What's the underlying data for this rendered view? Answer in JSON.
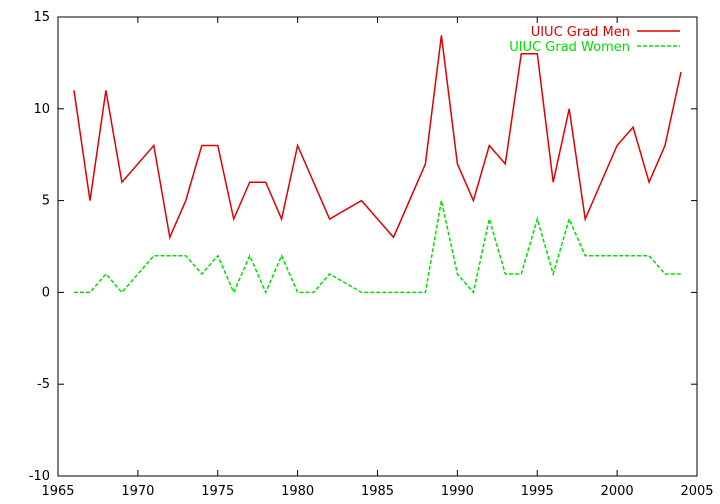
{
  "chart_data": {
    "type": "line",
    "title": "",
    "xlabel": "",
    "ylabel": "",
    "xlim": [
      1965,
      2005
    ],
    "ylim": [
      -10,
      15
    ],
    "xticks": [
      1965,
      1970,
      1975,
      1980,
      1985,
      1990,
      1995,
      2000,
      2005
    ],
    "yticks": [
      -10,
      -5,
      0,
      5,
      10,
      15
    ],
    "grid": false,
    "legend_position": "top-right",
    "series": [
      {
        "name": "UIUC Grad Men",
        "color": "#e00000",
        "style": "solid",
        "x": [
          1966,
          1967,
          1968,
          1969,
          1971,
          1972,
          1973,
          1974,
          1975,
          1976,
          1977,
          1978,
          1979,
          1980,
          1982,
          1984,
          1986,
          1988,
          1989,
          1990,
          1991,
          1992,
          1993,
          1994,
          1995,
          1996,
          1997,
          1998,
          2000,
          2001,
          2002,
          2003,
          2004
        ],
        "y": [
          11,
          5,
          11,
          6,
          8,
          3,
          5,
          8,
          8,
          4,
          6,
          6,
          4,
          8,
          4,
          5,
          3,
          7,
          14,
          7,
          5,
          8,
          7,
          13,
          13,
          6,
          10,
          4,
          8,
          9,
          6,
          8,
          12
        ]
      },
      {
        "name": "UIUC Grad Women",
        "color": "#00e000",
        "style": "dashed",
        "x": [
          1966,
          1967,
          1968,
          1969,
          1971,
          1973,
          1974,
          1975,
          1976,
          1977,
          1978,
          1979,
          1980,
          1981,
          1982,
          1984,
          1988,
          1989,
          1990,
          1991,
          1992,
          1993,
          1994,
          1995,
          1996,
          1997,
          1998,
          2002,
          2003,
          2004
        ],
        "y": [
          0,
          0,
          1,
          0,
          2,
          2,
          1,
          2,
          0,
          2,
          0,
          2,
          0,
          0,
          1,
          0,
          0,
          5,
          1,
          0,
          4,
          1,
          1,
          4,
          1,
          4,
          2,
          2,
          1,
          1
        ]
      }
    ]
  }
}
